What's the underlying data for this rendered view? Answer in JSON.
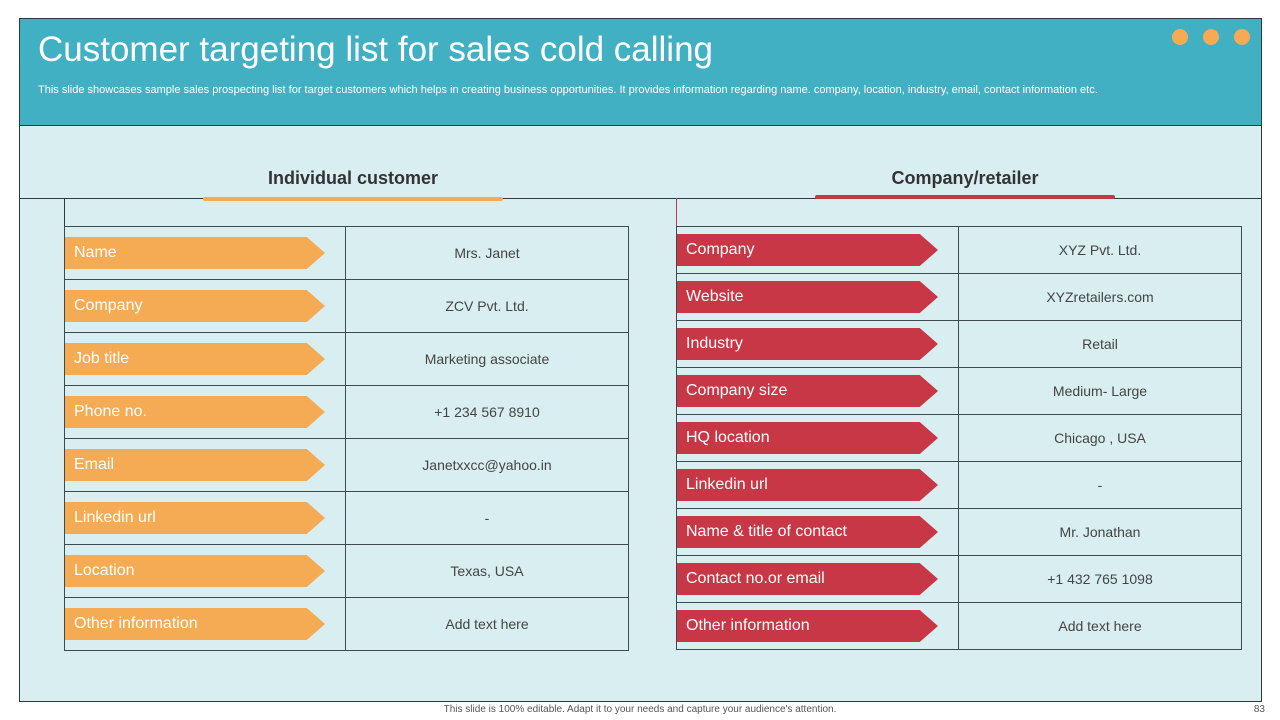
{
  "header": {
    "title": "Customer targeting list for sales cold calling",
    "subtitle": "This slide showcases sample sales prospecting list for target customers which helps in creating business opportunities. It provides information regarding name. company, location, industry, email, contact information etc."
  },
  "colors": {
    "header_bg": "#41b0c2",
    "content_bg": "#d9eef0",
    "orange": "#f4ab54",
    "red": "#c73745"
  },
  "individual": {
    "heading": "Individual customer",
    "rows": [
      {
        "label": "Name",
        "value": "Mrs. Janet"
      },
      {
        "label": "Company",
        "value": "ZCV Pvt. Ltd."
      },
      {
        "label": "Job title",
        "value": "Marketing associate"
      },
      {
        "label": "Phone no.",
        "value": "+1 234 567 8910"
      },
      {
        "label": "Email",
        "value": "Janetxxcc@yahoo.in"
      },
      {
        "label": "Linkedin url",
        "value": "-"
      },
      {
        "label": "Location",
        "value": "Texas, USA"
      },
      {
        "label": "Other information",
        "value": "Add text here"
      }
    ]
  },
  "company": {
    "heading": "Company/retailer",
    "rows": [
      {
        "label": "Company",
        "value": "XYZ Pvt. Ltd."
      },
      {
        "label": "Website",
        "value": "XYZretailers.com"
      },
      {
        "label": "Industry",
        "value": "Retail"
      },
      {
        "label": "Company size",
        "value": "Medium- Large"
      },
      {
        "label": "HQ location",
        "value": "Chicago , USA"
      },
      {
        "label": "Linkedin url",
        "value": "-"
      },
      {
        "label": "Name & title of contact",
        "value": "Mr. Jonathan"
      },
      {
        "label": "Contact no.or email",
        "value": "+1 432 765 1098"
      },
      {
        "label": "Other information",
        "value": "Add text here"
      }
    ]
  },
  "footer": {
    "note": "This slide is 100% editable. Adapt it to your needs and capture your audience's attention.",
    "page_number": "83"
  }
}
